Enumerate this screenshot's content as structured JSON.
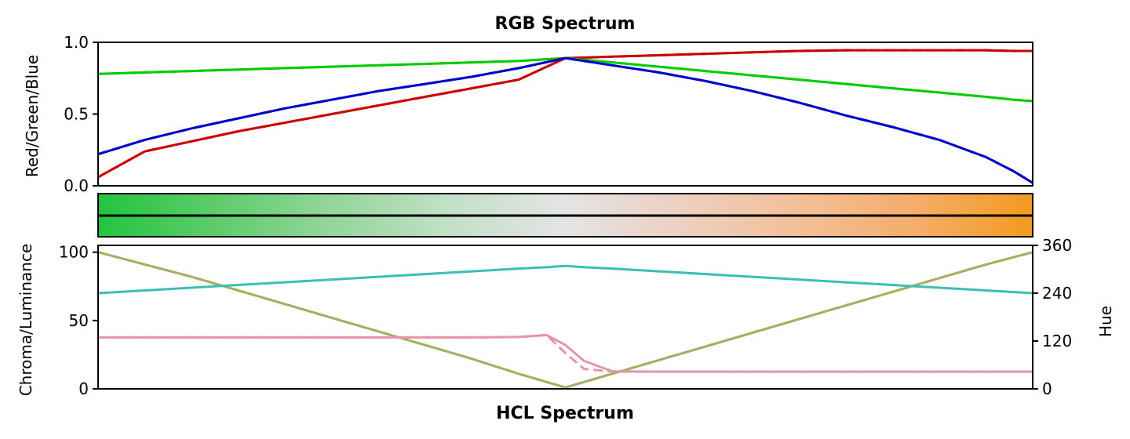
{
  "chart_data": [
    {
      "type": "line",
      "title": "RGB Spectrum",
      "xlabel": "",
      "ylabel": "Red/Green/Blue",
      "xlim": [
        0,
        1
      ],
      "ylim": [
        0,
        1
      ],
      "yticks": [
        "0.0",
        "0.5",
        "1.0"
      ],
      "grid": false,
      "x": [
        0,
        0.05,
        0.1,
        0.15,
        0.2,
        0.25,
        0.3,
        0.35,
        0.4,
        0.45,
        0.5,
        0.55,
        0.6,
        0.65,
        0.7,
        0.75,
        0.8,
        0.85,
        0.9,
        0.95,
        0.98,
        1.0
      ],
      "series": [
        {
          "color": "#cc0000",
          "line": "solid",
          "values": [
            0.06,
            0.24,
            0.31,
            0.38,
            0.44,
            0.5,
            0.56,
            0.62,
            0.68,
            0.74,
            0.89,
            0.9,
            0.91,
            0.92,
            0.93,
            0.94,
            0.945,
            0.945,
            0.945,
            0.945,
            0.94,
            0.94
          ]
        },
        {
          "color": "#cc0000",
          "line": "dashed",
          "values": [
            0.06,
            0.24,
            0.31,
            0.38,
            0.44,
            0.5,
            0.56,
            0.62,
            0.68,
            0.74,
            0.89,
            0.9,
            0.91,
            0.92,
            0.93,
            0.94,
            0.945,
            0.945,
            0.945,
            0.945,
            0.94,
            0.94
          ]
        },
        {
          "color": "#00cc00",
          "line": "solid",
          "values": [
            0.78,
            0.79,
            0.8,
            0.81,
            0.82,
            0.83,
            0.84,
            0.85,
            0.86,
            0.87,
            0.89,
            0.86,
            0.83,
            0.8,
            0.77,
            0.74,
            0.71,
            0.68,
            0.65,
            0.62,
            0.6,
            0.59
          ]
        },
        {
          "color": "#00cc00",
          "line": "dashed",
          "values": [
            0.78,
            0.79,
            0.8,
            0.81,
            0.82,
            0.83,
            0.84,
            0.85,
            0.86,
            0.87,
            0.89,
            0.86,
            0.83,
            0.8,
            0.77,
            0.74,
            0.71,
            0.68,
            0.65,
            0.62,
            0.6,
            0.59
          ]
        },
        {
          "color": "#0000cc",
          "line": "solid",
          "values": [
            0.22,
            0.32,
            0.4,
            0.47,
            0.54,
            0.6,
            0.66,
            0.71,
            0.76,
            0.82,
            0.89,
            0.84,
            0.79,
            0.73,
            0.66,
            0.58,
            0.49,
            0.41,
            0.32,
            0.2,
            0.1,
            0.02
          ]
        },
        {
          "color": "#0000cc",
          "line": "dashed",
          "values": [
            0.22,
            0.32,
            0.4,
            0.47,
            0.54,
            0.6,
            0.66,
            0.71,
            0.76,
            0.82,
            0.89,
            0.84,
            0.79,
            0.73,
            0.66,
            0.58,
            0.49,
            0.41,
            0.32,
            0.2,
            0.1,
            0.02
          ]
        }
      ]
    },
    {
      "type": "heatmap",
      "title": "",
      "colors": [
        "#22c43f",
        "#5dcc6a",
        "#94d69a",
        "#c2e0c6",
        "#e4e4e4",
        "#ecd0c0",
        "#f3bf98",
        "#f5ad6a",
        "#f29a1e"
      ],
      "line_color": "#000000"
    },
    {
      "type": "line",
      "title": "",
      "xlabel": "HCL Spectrum",
      "ylabel": "Chroma/Luminance",
      "ylabel_right": "Hue",
      "xlim": [
        0,
        1
      ],
      "ylim": [
        0,
        105
      ],
      "ylim_right": [
        0,
        360
      ],
      "yticks": [
        "0",
        "50",
        "100"
      ],
      "yticks_right": [
        "0",
        "120",
        "240",
        "360"
      ],
      "grid": false,
      "x": [
        0,
        0.05,
        0.1,
        0.15,
        0.2,
        0.25,
        0.3,
        0.35,
        0.4,
        0.45,
        0.48,
        0.5,
        0.52,
        0.55,
        0.6,
        0.65,
        0.7,
        0.75,
        0.8,
        0.85,
        0.9,
        0.95,
        1.0
      ],
      "series": [
        {
          "name_hidden": "chroma",
          "color": "#a8ad62",
          "line": "solid",
          "axis": "left",
          "values": [
            100,
            91,
            82,
            72,
            62,
            52,
            42,
            32,
            22,
            11,
            5,
            1,
            5,
            11,
            21,
            31,
            41,
            51,
            61,
            71,
            81,
            91,
            100
          ]
        },
        {
          "color": "#a8ad62",
          "line": "dashed",
          "axis": "left",
          "values": [
            100,
            91,
            82,
            72,
            62,
            52,
            42,
            32,
            22,
            11,
            5,
            1,
            5,
            11,
            21,
            31,
            41,
            51,
            61,
            71,
            81,
            91,
            100
          ]
        },
        {
          "color": "#3bbfb2",
          "line": "solid",
          "axis": "left",
          "values": [
            70,
            72,
            74,
            76,
            78,
            80,
            82,
            84,
            86,
            88,
            89,
            90,
            89,
            88,
            86,
            84,
            82,
            80,
            78,
            76,
            74,
            72,
            70
          ]
        },
        {
          "color": "#e497a8",
          "line": "solid",
          "axis": "right",
          "values": [
            129,
            129,
            129,
            129,
            129,
            129,
            129,
            129,
            129,
            130,
            135,
            110,
            70,
            44,
            43,
            43,
            43,
            43,
            43,
            43,
            43,
            43,
            43
          ]
        },
        {
          "color": "#e497a8",
          "line": "dashed",
          "axis": "right",
          "values": [
            129,
            129,
            129,
            129,
            129,
            129,
            129,
            129,
            129,
            130,
            135,
            90,
            50,
            43,
            43,
            43,
            43,
            43,
            43,
            43,
            43,
            43,
            43
          ]
        }
      ]
    }
  ]
}
